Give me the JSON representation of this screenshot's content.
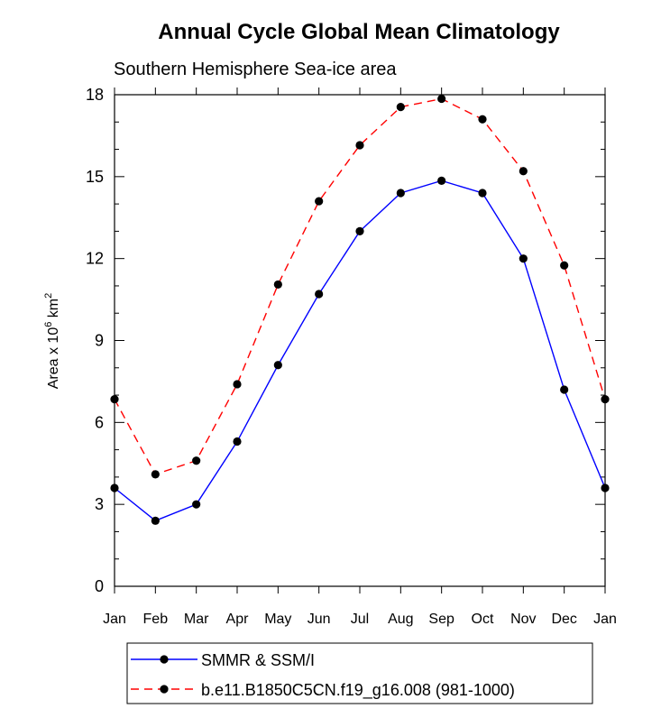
{
  "chart_data": {
    "type": "line",
    "title": "Annual Cycle Global Mean Climatology",
    "subtitle": "Southern Hemisphere Sea-ice area",
    "ylabel": "Area x 10",
    "ylabel_sup_a": "6",
    "ylabel_unit": " km",
    "ylabel_sup_b": "2",
    "xlabel": "",
    "categories": [
      "Jan",
      "Feb",
      "Mar",
      "Apr",
      "May",
      "Jun",
      "Jul",
      "Aug",
      "Sep",
      "Oct",
      "Nov",
      "Dec",
      "Jan"
    ],
    "ylim": [
      0,
      18
    ],
    "yticks": [
      0,
      3,
      6,
      9,
      12,
      15,
      18
    ],
    "series": [
      {
        "name": "SMMR & SSM/I",
        "color": "#0000ff",
        "dash": "solid",
        "values": [
          3.6,
          2.4,
          3.0,
          5.3,
          8.1,
          10.7,
          13.0,
          14.4,
          14.85,
          14.4,
          12.0,
          7.2,
          3.6
        ]
      },
      {
        "name": "b.e11.B1850C5CN.f19_g16.008 (981-1000)",
        "color": "#ff0000",
        "dash": "dashed",
        "values": [
          6.85,
          4.1,
          4.6,
          7.4,
          11.05,
          14.1,
          16.15,
          17.55,
          17.85,
          17.1,
          15.2,
          11.75,
          6.85
        ]
      }
    ],
    "legend_position": "bottom"
  }
}
